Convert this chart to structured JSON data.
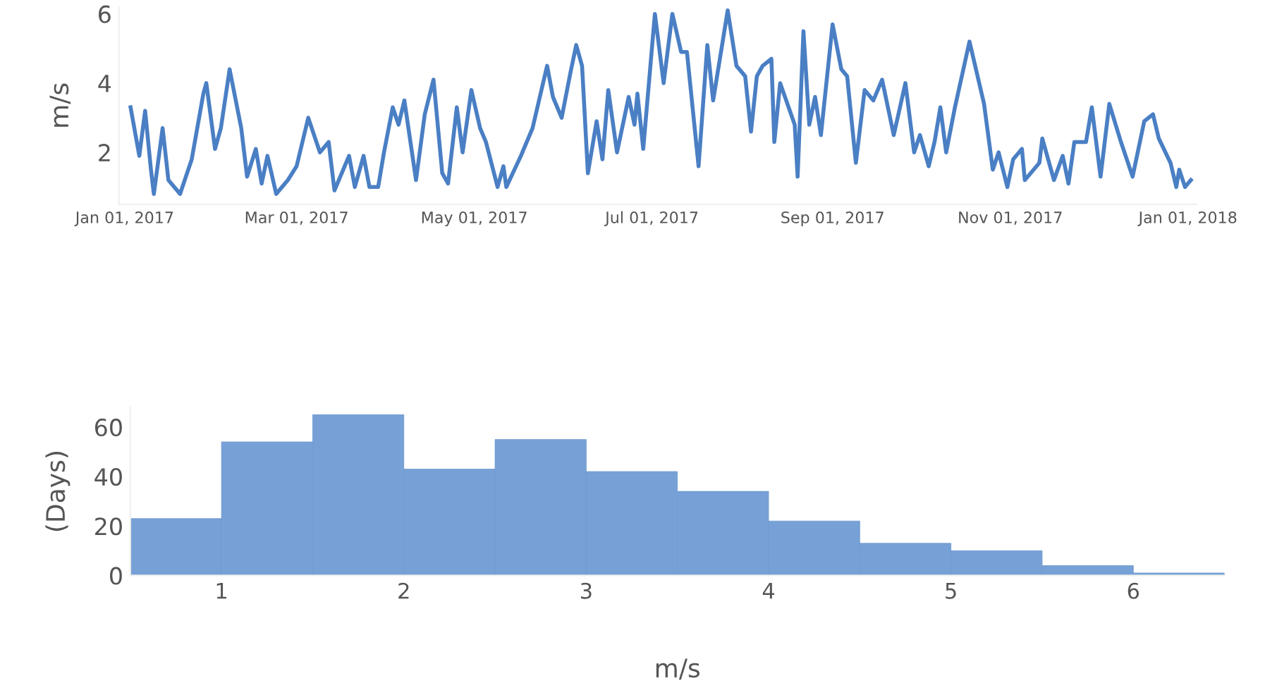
{
  "chart_data": [
    {
      "type": "line",
      "ylabel": "m/s",
      "xlim": [
        "2016-12-30",
        "2018-01-04"
      ],
      "ylim": [
        0.5,
        6.2
      ],
      "yticks": [
        2,
        4,
        6
      ],
      "xticks": [
        {
          "value": "2017-01-01",
          "label": "Jan 01, 2017"
        },
        {
          "value": "2017-03-01",
          "label": "Mar 01, 2017"
        },
        {
          "value": "2017-05-01",
          "label": "May 01, 2017"
        },
        {
          "value": "2017-07-01",
          "label": "Jul 01, 2017"
        },
        {
          "value": "2017-09-01",
          "label": "Sep 01, 2017"
        },
        {
          "value": "2017-11-01",
          "label": "Nov 01, 2017"
        },
        {
          "value": "2018-01-01",
          "label": "Jan 01, 2018"
        }
      ],
      "grid": false,
      "series": [
        {
          "color": "#4a7fc4",
          "x": [
            "2017-01-03",
            "2017-01-06",
            "2017-01-08",
            "2017-01-10",
            "2017-01-11",
            "2017-01-14",
            "2017-01-16",
            "2017-01-20",
            "2017-01-24",
            "2017-01-28",
            "2017-01-29",
            "2017-02-01",
            "2017-02-03",
            "2017-02-06",
            "2017-02-10",
            "2017-02-12",
            "2017-02-15",
            "2017-02-17",
            "2017-02-19",
            "2017-02-22",
            "2017-02-26",
            "2017-03-01",
            "2017-03-05",
            "2017-03-09",
            "2017-03-12",
            "2017-03-14",
            "2017-03-19",
            "2017-03-21",
            "2017-03-24",
            "2017-03-26",
            "2017-03-29",
            "2017-03-31",
            "2017-04-03",
            "2017-04-05",
            "2017-04-07",
            "2017-04-11",
            "2017-04-14",
            "2017-04-17",
            "2017-04-20",
            "2017-04-22",
            "2017-04-25",
            "2017-04-27",
            "2017-04-30",
            "2017-05-03",
            "2017-05-05",
            "2017-05-09",
            "2017-05-11",
            "2017-05-12",
            "2017-05-17",
            "2017-05-21",
            "2017-05-26",
            "2017-05-28",
            "2017-05-31",
            "2017-06-03",
            "2017-06-05",
            "2017-06-07",
            "2017-06-09",
            "2017-06-12",
            "2017-06-14",
            "2017-06-16",
            "2017-06-19",
            "2017-06-23",
            "2017-06-25",
            "2017-06-26",
            "2017-06-28",
            "2017-07-02",
            "2017-07-05",
            "2017-07-08",
            "2017-07-11",
            "2017-07-13",
            "2017-07-17",
            "2017-07-20",
            "2017-07-22",
            "2017-07-27",
            "2017-07-30",
            "2017-08-02",
            "2017-08-04",
            "2017-08-06",
            "2017-08-08",
            "2017-08-11",
            "2017-08-12",
            "2017-08-14",
            "2017-08-19",
            "2017-08-20",
            "2017-08-22",
            "2017-08-24",
            "2017-08-26",
            "2017-08-28",
            "2017-09-01",
            "2017-09-04",
            "2017-09-06",
            "2017-09-09",
            "2017-09-12",
            "2017-09-15",
            "2017-09-18",
            "2017-09-22",
            "2017-09-26",
            "2017-09-29",
            "2017-10-01",
            "2017-10-04",
            "2017-10-06",
            "2017-10-08",
            "2017-10-10",
            "2017-10-13",
            "2017-10-18",
            "2017-10-23",
            "2017-10-26",
            "2017-10-28",
            "2017-10-31",
            "2017-11-02",
            "2017-11-05",
            "2017-11-06",
            "2017-11-11",
            "2017-11-12",
            "2017-11-16",
            "2017-11-19",
            "2017-11-21",
            "2017-11-23",
            "2017-11-27",
            "2017-11-29",
            "2017-12-02",
            "2017-12-05",
            "2017-12-09",
            "2017-12-13",
            "2017-12-17",
            "2017-12-20",
            "2017-12-22",
            "2017-12-26",
            "2017-12-28",
            "2017-12-29",
            "2017-12-31",
            "2018-01-02"
          ],
          "values": [
            3.3,
            1.9,
            3.2,
            1.5,
            0.8,
            2.7,
            1.2,
            0.8,
            1.8,
            3.7,
            4.0,
            2.1,
            2.7,
            4.4,
            2.7,
            1.3,
            2.1,
            1.1,
            1.9,
            0.8,
            1.2,
            1.6,
            3.0,
            2.0,
            2.3,
            0.9,
            1.9,
            1.0,
            1.9,
            1.0,
            1.0,
            2.0,
            3.3,
            2.8,
            3.5,
            1.2,
            3.1,
            4.1,
            1.4,
            1.1,
            3.3,
            2.0,
            3.8,
            2.7,
            2.3,
            1.0,
            1.6,
            1.0,
            1.9,
            2.7,
            4.5,
            3.6,
            3.0,
            4.3,
            5.1,
            4.5,
            1.4,
            2.9,
            1.8,
            3.8,
            2.0,
            3.6,
            2.8,
            3.7,
            2.1,
            6.0,
            4.0,
            6.0,
            4.9,
            4.9,
            1.6,
            5.1,
            3.5,
            6.1,
            4.5,
            4.2,
            2.6,
            4.2,
            4.5,
            4.7,
            2.3,
            4.0,
            2.8,
            1.3,
            5.5,
            2.8,
            3.6,
            2.5,
            5.7,
            4.4,
            4.2,
            1.7,
            3.8,
            3.5,
            4.1,
            2.5,
            4.0,
            2.0,
            2.5,
            1.6,
            2.3,
            3.3,
            2.0,
            3.3,
            5.2,
            3.4,
            1.5,
            2.0,
            1.0,
            1.8,
            2.1,
            1.2,
            1.7,
            2.4,
            1.2,
            1.9,
            1.1,
            2.3,
            2.3,
            3.3,
            1.3,
            3.4,
            2.3,
            1.3,
            2.9,
            3.1,
            2.4,
            1.7,
            1.0,
            1.5,
            1.0,
            1.2
          ]
        }
      ]
    },
    {
      "type": "histogram",
      "xlabel": "m/s",
      "ylabel": "(Days)",
      "color": "#77a1d6",
      "bins": [
        0.5,
        1.0,
        1.5,
        2.0,
        2.5,
        3.0,
        3.5,
        4.0,
        4.5,
        5.0,
        5.5,
        6.0,
        6.5
      ],
      "values": [
        23,
        54,
        65,
        43,
        55,
        42,
        34,
        22,
        13,
        10,
        4,
        1
      ],
      "xlim": [
        0.5,
        6.5
      ],
      "xticks": [
        1,
        2,
        3,
        4,
        5,
        6
      ],
      "ylim": [
        0,
        68
      ],
      "yticks": [
        0,
        20,
        40,
        60
      ],
      "grid": false
    }
  ]
}
